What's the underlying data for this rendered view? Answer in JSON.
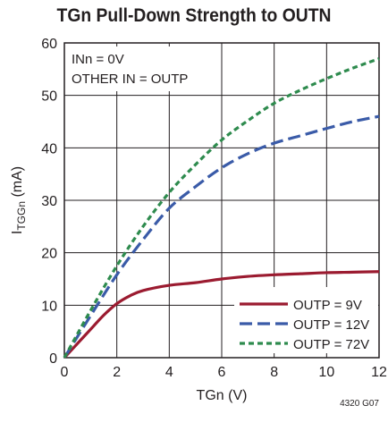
{
  "chart_data": {
    "type": "line",
    "title": "TGn Pull-Down Strength to OUTN",
    "xlabel": "TGn (V)",
    "ylabel_main": "I",
    "ylabel_sub": "TGGn",
    "ylabel_unit": " (mA)",
    "xlim": [
      0,
      12
    ],
    "ylim": [
      0,
      60
    ],
    "xticks": [
      0,
      2,
      4,
      6,
      8,
      10,
      12
    ],
    "yticks": [
      0,
      10,
      20,
      30,
      40,
      50,
      60
    ],
    "grid": true,
    "legend_position": "bottom-right",
    "annotations": [
      "INn = 0V",
      "OTHER IN = OUTP"
    ],
    "series": [
      {
        "name": "OUTP = 9V",
        "color": "#9b1b30",
        "style": "solid",
        "x": [
          0,
          0.5,
          1,
          1.5,
          2,
          2.5,
          3,
          4,
          5,
          6,
          7,
          8,
          9,
          10,
          11,
          12
        ],
        "y": [
          0,
          2.7,
          5.4,
          8.1,
          10.3,
          11.8,
          12.8,
          13.8,
          14.3,
          15.0,
          15.5,
          15.8,
          16.0,
          16.2,
          16.3,
          16.4
        ]
      },
      {
        "name": "OUTP = 12V",
        "color": "#3a5ba8",
        "style": "dashed",
        "x": [
          0,
          1,
          2,
          3,
          4,
          5,
          6,
          7,
          8,
          9,
          10,
          11,
          12
        ],
        "y": [
          0,
          8.0,
          15.8,
          22.5,
          28.5,
          32.6,
          36.2,
          38.9,
          40.9,
          42.3,
          43.7,
          45.0,
          46.0
        ]
      },
      {
        "name": "OUTP = 72V",
        "color": "#2e8b4e",
        "style": "dotted",
        "x": [
          0,
          1,
          2,
          3,
          4,
          5,
          6,
          7,
          8,
          9,
          10,
          11,
          12
        ],
        "y": [
          0,
          9.0,
          17.5,
          25.0,
          31.5,
          36.8,
          41.5,
          45.2,
          48.5,
          51.0,
          53.2,
          55.2,
          57.0
        ]
      }
    ]
  },
  "figure_code": "4320 G07"
}
